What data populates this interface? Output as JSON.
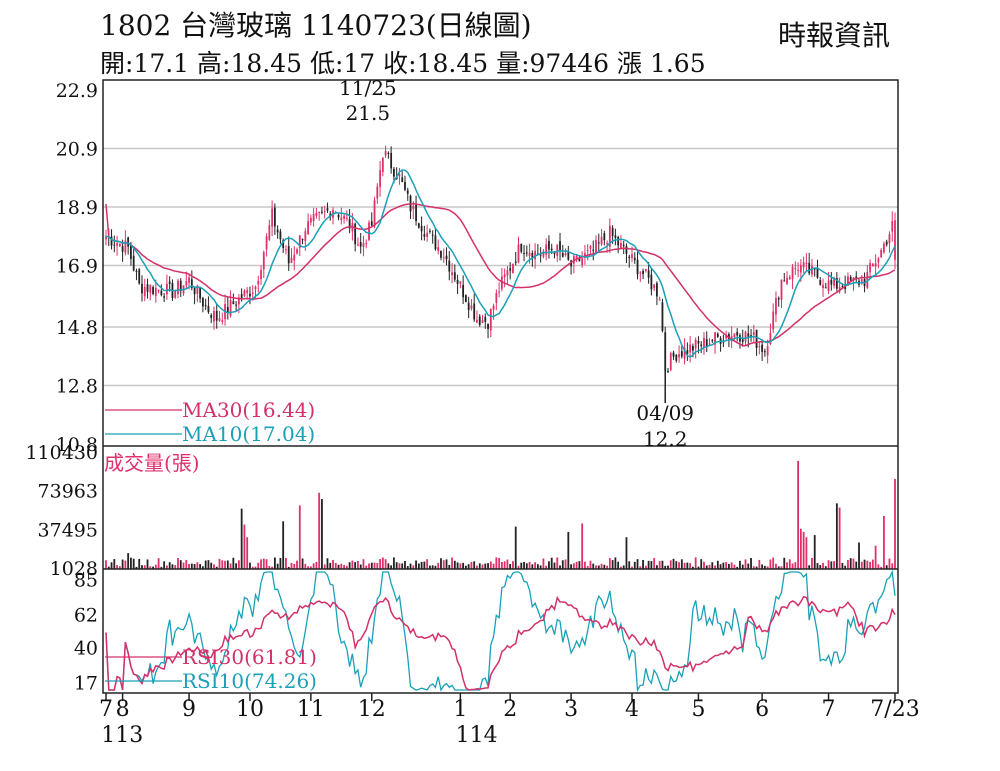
{
  "header": {
    "title": "1802  台灣玻璃 1140723(日線圖)",
    "ohlc": "開:17.1 高:18.45 低:17 收:18.45 量:97446 漲 1.65",
    "source": "時報資訊"
  },
  "colors": {
    "up": "#e0306a",
    "down": "#222222",
    "ma30": "#d4306a",
    "ma10": "#1aa0b8",
    "grid": "#999999"
  },
  "chart_data": [
    {
      "type": "candlestick",
      "panel": "price",
      "yticks": [
        "22.9",
        "20.9",
        "18.9",
        "16.9",
        "14.8",
        "12.8",
        "10.8"
      ],
      "ylim": [
        10.8,
        22.9
      ],
      "high_annotation": {
        "date": "11/25",
        "value": "21.5"
      },
      "low_annotation": {
        "date": "04/09",
        "value": "12.2"
      },
      "legend": [
        {
          "name": "MA30(16.44)",
          "color": "#d4306a"
        },
        {
          "name": "MA10(17.04)",
          "color": "#1aa0b8"
        }
      ],
      "close_anchors": [
        [
          0,
          17.9
        ],
        [
          8,
          17.5
        ],
        [
          12,
          16.2
        ],
        [
          18,
          16.1
        ],
        [
          24,
          16.0
        ],
        [
          30,
          16.4
        ],
        [
          36,
          15.5
        ],
        [
          40,
          15.1
        ],
        [
          46,
          15.6
        ],
        [
          54,
          16.2
        ],
        [
          60,
          18.6
        ],
        [
          66,
          17.0
        ],
        [
          72,
          18.2
        ],
        [
          78,
          18.6
        ],
        [
          82,
          18.9
        ],
        [
          88,
          18.3
        ],
        [
          92,
          17.5
        ],
        [
          96,
          18.3
        ],
        [
          100,
          20.8
        ],
        [
          106,
          19.9
        ],
        [
          110,
          18.9
        ],
        [
          116,
          18.0
        ],
        [
          122,
          17.3
        ],
        [
          128,
          16.2
        ],
        [
          134,
          15.1
        ],
        [
          138,
          15.0
        ],
        [
          142,
          16.1
        ],
        [
          150,
          17.6
        ],
        [
          156,
          17.3
        ],
        [
          162,
          17.5
        ],
        [
          168,
          16.9
        ],
        [
          176,
          17.4
        ],
        [
          182,
          18.0
        ],
        [
          188,
          17.3
        ],
        [
          196,
          16.4
        ],
        [
          200,
          15.9
        ],
        [
          202,
          13.4
        ],
        [
          206,
          13.9
        ],
        [
          212,
          14.1
        ],
        [
          220,
          14.4
        ],
        [
          228,
          14.6
        ],
        [
          234,
          14.4
        ],
        [
          238,
          14.0
        ],
        [
          244,
          16.4
        ],
        [
          250,
          16.9
        ],
        [
          256,
          16.6
        ],
        [
          262,
          16.2
        ],
        [
          268,
          16.3
        ],
        [
          274,
          16.4
        ],
        [
          280,
          17.4
        ],
        [
          285,
          18.45
        ]
      ]
    },
    {
      "type": "bar",
      "panel": "volume",
      "label": "成交量(張)",
      "yticks": [
        "110430",
        "73963",
        "37495",
        "1028"
      ],
      "ylim": [
        1028,
        110430
      ],
      "spikes": [
        [
          8,
          15000
        ],
        [
          49,
          57000
        ],
        [
          50,
          42000
        ],
        [
          51,
          30000
        ],
        [
          64,
          45000
        ],
        [
          70,
          60000
        ],
        [
          77,
          72000
        ],
        [
          78,
          66000
        ],
        [
          148,
          40000
        ],
        [
          167,
          35000
        ],
        [
          172,
          43000
        ],
        [
          188,
          30000
        ],
        [
          250,
          102000
        ],
        [
          251,
          38000
        ],
        [
          252,
          35000
        ],
        [
          253,
          30000
        ],
        [
          256,
          32000
        ],
        [
          264,
          62000
        ],
        [
          265,
          58000
        ],
        [
          272,
          25000
        ],
        [
          278,
          22000
        ],
        [
          281,
          50000
        ],
        [
          285,
          85000
        ]
      ]
    },
    {
      "type": "line",
      "panel": "rsi",
      "yticks": [
        "85",
        "62",
        "40",
        "17"
      ],
      "ylim": [
        10,
        92
      ],
      "legend": [
        {
          "name": "RSI30(61.81)",
          "color": "#d4306a"
        },
        {
          "name": "RSI10(74.26)",
          "color": "#1aa0b8"
        }
      ]
    }
  ],
  "xaxis": {
    "months": [
      {
        "label": "7",
        "i": 0
      },
      {
        "label": "8",
        "i": 6
      },
      {
        "label": "9",
        "i": 30
      },
      {
        "label": "10",
        "i": 52
      },
      {
        "label": "11",
        "i": 74
      },
      {
        "label": "12",
        "i": 96
      },
      {
        "label": "1",
        "i": 128
      },
      {
        "label": "2",
        "i": 146
      },
      {
        "label": "3",
        "i": 168
      },
      {
        "label": "4",
        "i": 190
      },
      {
        "label": "5",
        "i": 214
      },
      {
        "label": "6",
        "i": 237
      },
      {
        "label": "7",
        "i": 261
      },
      {
        "label": "7/23",
        "i": 285
      }
    ],
    "years": [
      {
        "label": "113",
        "i": 3
      },
      {
        "label": "114",
        "i": 131
      }
    ]
  }
}
